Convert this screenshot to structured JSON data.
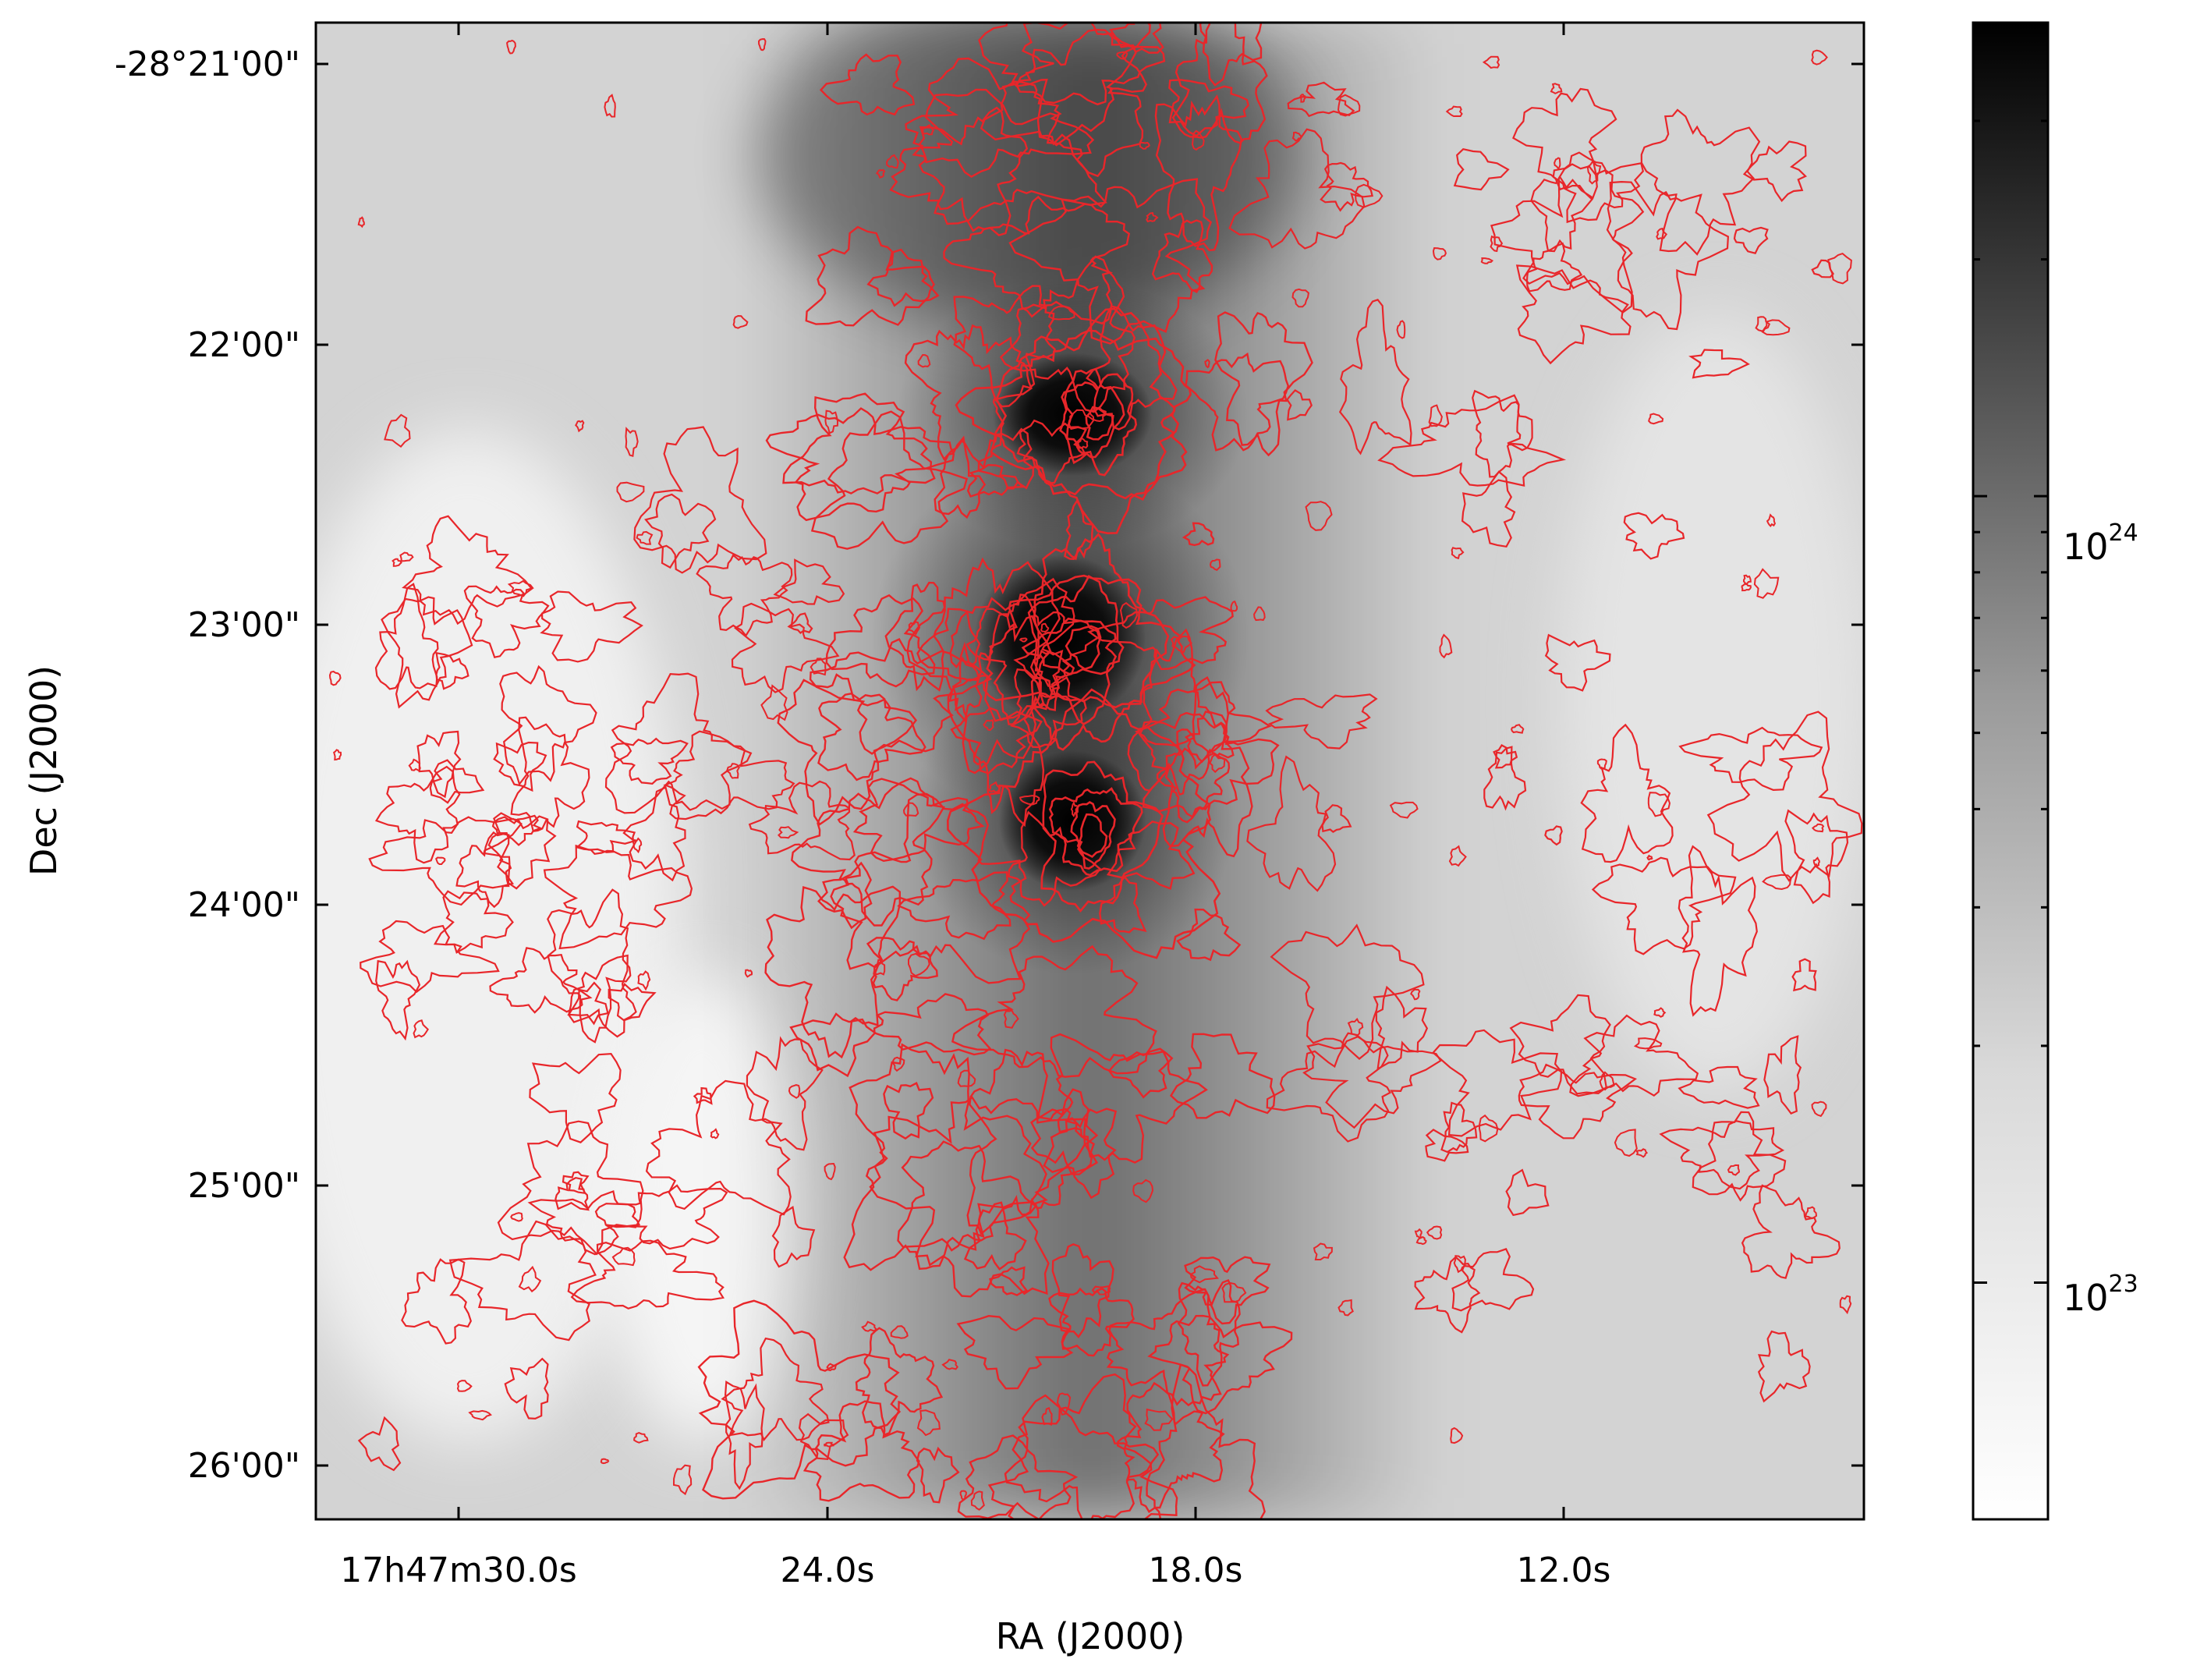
{
  "chart_data": {
    "type": "heatmap",
    "title": "",
    "xlabel": "RA (J2000)",
    "ylabel": "Dec (J2000)",
    "x_ticks": [
      "17h47m30.0s",
      "24.0s",
      "18.0s",
      "12.0s"
    ],
    "y_ticks": [
      "-28°21'00\"",
      "22'00\"",
      "23'00\"",
      "24'00\"",
      "25'00\"",
      "26'00\""
    ],
    "colormap": "gray_r",
    "colorbar": {
      "scale": "log",
      "range": [
        50000000000000000000000,
        4000000000000000000000000
      ],
      "ticks": [
        {
          "base": "10",
          "exp": "23",
          "value": 100000000000000000000000
        },
        {
          "base": "10",
          "exp": "24",
          "value": 1000000000000000000000000
        }
      ]
    },
    "contour_color": "#e8262a",
    "sources": [
      {
        "ra_s": 20.0,
        "dec_min": 22.25,
        "peak": 3000000000000000000000000,
        "sigma_ra_s": 1.3,
        "sigma_dec_min": 0.22
      },
      {
        "ra_s": 20.2,
        "dec_min": 23.05,
        "peak": 3200000000000000000000000,
        "sigma_ra_s": 1.4,
        "sigma_dec_min": 0.3
      },
      {
        "ra_s": 20.0,
        "dec_min": 23.7,
        "peak": 1400000000000000000000000,
        "sigma_ra_s": 1.2,
        "sigma_dec_min": 0.25
      }
    ]
  }
}
